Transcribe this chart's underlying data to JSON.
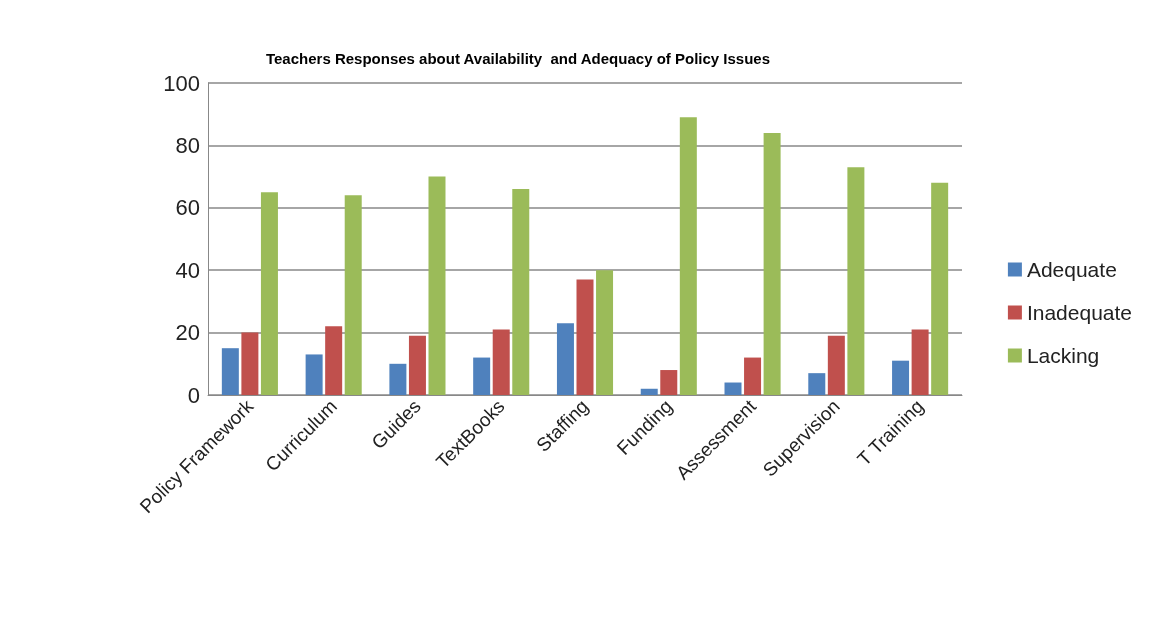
{
  "chart_data": {
    "type": "bar",
    "title": "Teachers Responses about Availability  and Adequacy of Policy Issues",
    "categories": [
      "Policy Framework",
      "Curriculum",
      "Guides",
      "TextBooks",
      "Staffing",
      "Funding",
      "Assessment",
      "Supervision",
      "T Training"
    ],
    "series": [
      {
        "name": "Adequate",
        "color": "#4f81bd",
        "values": [
          15,
          13,
          10,
          12,
          23,
          2,
          4,
          7,
          11
        ]
      },
      {
        "name": "Inadequate",
        "color": "#c0504d",
        "values": [
          20,
          22,
          19,
          21,
          37,
          8,
          12,
          19,
          21
        ]
      },
      {
        "name": "Lacking",
        "color": "#9bbb59",
        "values": [
          65,
          64,
          70,
          66,
          40,
          89,
          84,
          73,
          68
        ]
      }
    ],
    "ylim": [
      0,
      100
    ],
    "yticks": [
      0,
      20,
      40,
      60,
      80,
      100
    ],
    "grid": "y",
    "legend": "right"
  }
}
